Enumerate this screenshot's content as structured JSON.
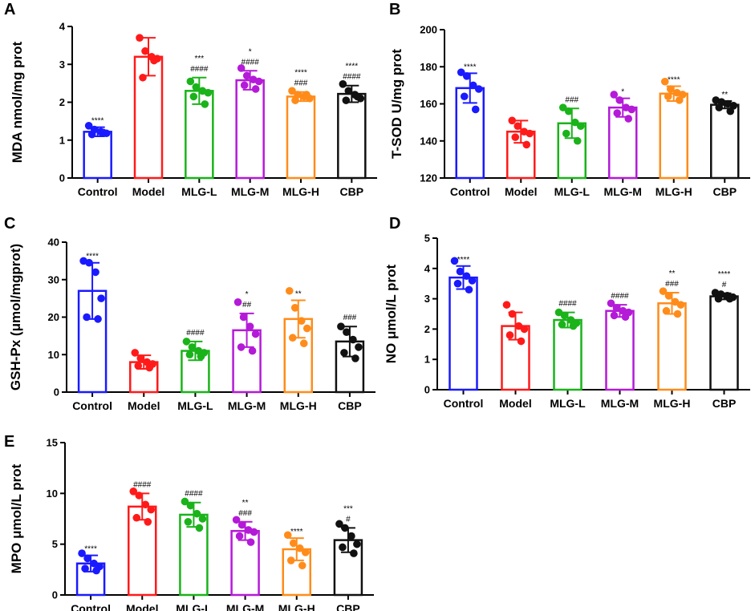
{
  "chart_data": [
    {
      "type": "bar",
      "panel": "A",
      "ylabel": "MDA nmol/mg prot",
      "ylim": [
        0,
        4
      ],
      "yticks": [
        0,
        1,
        2,
        3,
        4
      ],
      "categories": [
        "Control",
        "Model",
        "MLG-L",
        "MLG-M",
        "MLG-H",
        "CBP"
      ],
      "values": [
        1.22,
        3.2,
        2.3,
        2.58,
        2.15,
        2.22
      ],
      "errors": [
        0.12,
        0.5,
        0.35,
        0.25,
        0.12,
        0.22
      ],
      "points": [
        [
          1.38,
          1.28,
          1.22,
          1.18,
          1.15,
          1.2
        ],
        [
          3.7,
          3.35,
          3.2,
          3.15,
          2.65,
          3.1
        ],
        [
          2.55,
          2.4,
          2.3,
          2.25,
          2.15,
          1.95
        ],
        [
          2.9,
          2.7,
          2.6,
          2.55,
          2.45,
          2.35
        ],
        [
          2.3,
          2.2,
          2.15,
          2.1,
          2.05,
          2.2
        ],
        [
          2.48,
          2.3,
          2.2,
          2.1,
          2.05,
          2.15
        ]
      ],
      "annotations_top": [
        "****",
        "",
        "***",
        "*",
        "****",
        "****"
      ],
      "annotations_bottom": [
        "",
        "",
        "####",
        "####",
        "###",
        "####"
      ],
      "colors": [
        "#1a1aff",
        "#ff1a1a",
        "#1ab31a",
        "#b41ad8",
        "#ff8c1a",
        "#111111"
      ]
    },
    {
      "type": "bar",
      "panel": "B",
      "ylabel": "T-SOD U/mg prot",
      "ylim": [
        120,
        200
      ],
      "yticks": [
        120,
        140,
        160,
        180,
        200
      ],
      "categories": [
        "Control",
        "Model",
        "MLG-L",
        "MLG-M",
        "MLG-H",
        "CBP"
      ],
      "values": [
        168.5,
        145,
        149.5,
        158,
        165.5,
        159.5
      ],
      "errors": [
        8,
        6,
        8,
        5,
        4,
        2
      ],
      "points": [
        [
          177,
          175,
          170,
          168,
          164,
          157
        ],
        [
          151,
          148,
          145,
          144,
          142,
          138
        ],
        [
          158,
          156,
          150,
          148,
          144,
          140
        ],
        [
          165,
          162,
          158,
          157,
          155,
          152
        ],
        [
          172,
          168,
          166,
          165,
          164,
          162
        ],
        [
          162,
          161,
          160,
          159,
          158,
          156
        ]
      ],
      "annotations_top": [
        "****",
        "",
        "###",
        "*",
        "****",
        "**"
      ],
      "annotations_bottom": [
        "",
        "",
        "",
        "",
        "",
        ""
      ],
      "colors": [
        "#1a1aff",
        "#ff1a1a",
        "#1ab31a",
        "#b41ad8",
        "#ff8c1a",
        "#111111"
      ]
    },
    {
      "type": "bar",
      "panel": "C",
      "ylabel": "GSH-Px (μmol/mgprot)",
      "ylim": [
        0,
        40
      ],
      "yticks": [
        0,
        10,
        20,
        30,
        40
      ],
      "categories": [
        "Control",
        "Model",
        "MLG-L",
        "MLG-M",
        "MLG-H",
        "CBP"
      ],
      "values": [
        27,
        8,
        11,
        16.5,
        19.5,
        13.5
      ],
      "errors": [
        7.5,
        1.8,
        2.5,
        4.5,
        5,
        4
      ],
      "points": [
        [
          35,
          34.5,
          32,
          25,
          20,
          19.5
        ],
        [
          10.5,
          9,
          8,
          7.5,
          7,
          6.5
        ],
        [
          13.5,
          12,
          11,
          10.5,
          10,
          9.5
        ],
        [
          24,
          20,
          17.5,
          15.5,
          12,
          11
        ],
        [
          27,
          22.5,
          19,
          17,
          14.5,
          13
        ],
        [
          17.5,
          16,
          14,
          12,
          10.5,
          9
        ]
      ],
      "annotations_top": [
        "****",
        "",
        "####",
        "*",
        "**",
        "###"
      ],
      "annotations_bottom": [
        "",
        "",
        "",
        "##",
        "",
        ""
      ],
      "colors": [
        "#1a1aff",
        "#ff1a1a",
        "#1ab31a",
        "#b41ad8",
        "#ff8c1a",
        "#111111"
      ]
    },
    {
      "type": "bar",
      "panel": "D",
      "ylabel": "NO μmol/L prot",
      "ylim": [
        0,
        5
      ],
      "yticks": [
        0,
        1,
        2,
        3,
        4,
        5
      ],
      "categories": [
        "Control",
        "Model",
        "MLG-L",
        "MLG-M",
        "MLG-H",
        "CBP"
      ],
      "values": [
        3.7,
        2.1,
        2.3,
        2.6,
        2.85,
        3.08
      ],
      "errors": [
        0.38,
        0.45,
        0.25,
        0.2,
        0.35,
        0.1
      ],
      "points": [
        [
          4.25,
          3.9,
          3.75,
          3.6,
          3.5,
          3.3
        ],
        [
          2.8,
          2.5,
          2.1,
          2.0,
          1.8,
          1.6
        ],
        [
          2.55,
          2.45,
          2.3,
          2.2,
          2.15,
          2.1
        ],
        [
          2.85,
          2.7,
          2.6,
          2.55,
          2.45,
          2.4
        ],
        [
          3.25,
          3.1,
          2.9,
          2.8,
          2.6,
          2.5
        ],
        [
          3.2,
          3.15,
          3.1,
          3.05,
          3.0,
          3.0
        ]
      ],
      "annotations_top": [
        "****",
        "",
        "####",
        "####",
        "**",
        "****"
      ],
      "annotations_bottom": [
        "",
        "",
        "",
        "",
        "###",
        "#"
      ],
      "colors": [
        "#1a1aff",
        "#ff1a1a",
        "#1ab31a",
        "#b41ad8",
        "#ff8c1a",
        "#111111"
      ]
    },
    {
      "type": "bar",
      "panel": "E",
      "ylabel": "MPO μmol/L prot",
      "ylim": [
        0,
        15
      ],
      "yticks": [
        0,
        5,
        10,
        15
      ],
      "categories": [
        "Control",
        "Model",
        "MLG-L",
        "MLG-M",
        "MLG-H",
        "CBP"
      ],
      "values": [
        3.1,
        8.7,
        7.9,
        6.3,
        4.5,
        5.4
      ],
      "errors": [
        0.8,
        1.3,
        1.2,
        0.9,
        1.1,
        1.2
      ],
      "points": [
        [
          4.1,
          3.6,
          3.1,
          2.8,
          2.6,
          2.4
        ],
        [
          10.2,
          9.8,
          8.9,
          8.4,
          7.6,
          7.2
        ],
        [
          9.2,
          8.8,
          8.0,
          7.5,
          7.2,
          6.6
        ],
        [
          7.4,
          6.9,
          6.4,
          6.2,
          5.8,
          5.2
        ],
        [
          5.9,
          5.1,
          4.6,
          4.2,
          3.4,
          2.9
        ],
        [
          7.0,
          6.6,
          5.8,
          5.0,
          4.7,
          4.1
        ]
      ],
      "annotations_top": [
        "****",
        "####",
        "####",
        "**",
        "****",
        "***"
      ],
      "annotations_bottom": [
        "",
        "",
        "",
        "###",
        "",
        "#"
      ],
      "colors": [
        "#1a1aff",
        "#ff1a1a",
        "#1ab31a",
        "#b41ad8",
        "#ff8c1a",
        "#111111"
      ]
    }
  ]
}
